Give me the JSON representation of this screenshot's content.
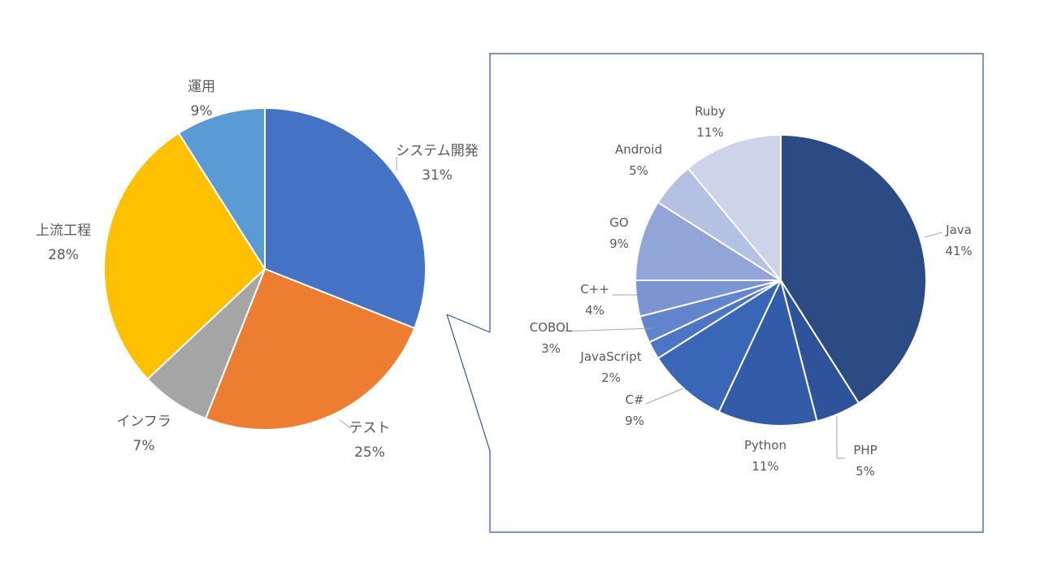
{
  "chart_data": [
    {
      "type": "pie",
      "title": "",
      "slices": [
        {
          "label": "システム開発",
          "value": 31,
          "text": "31%",
          "color": "#4472C4"
        },
        {
          "label": "テスト",
          "value": 25,
          "text": "25%",
          "color": "#ED7D31"
        },
        {
          "label": "インフラ",
          "value": 7,
          "text": "7%",
          "color": "#A5A5A5"
        },
        {
          "label": "上流工程",
          "value": 28,
          "text": "28%",
          "color": "#FFC000"
        },
        {
          "label": "運用",
          "value": 9,
          "text": "9%",
          "color": "#5B9BD5"
        }
      ]
    },
    {
      "type": "pie",
      "title": "",
      "breakdown_of": "システム開発",
      "slices": [
        {
          "label": "Java",
          "value": 41,
          "text": "41%",
          "color": "#2C4A84"
        },
        {
          "label": "PHP",
          "value": 5,
          "text": "5%",
          "color": "#2F539A"
        },
        {
          "label": "Python",
          "value": 11,
          "text": "11%",
          "color": "#335CA8"
        },
        {
          "label": "C#",
          "value": 9,
          "text": "9%",
          "color": "#3A66B8"
        },
        {
          "label": "JavaScript",
          "value": 2,
          "text": "2%",
          "color": "#4C76C4"
        },
        {
          "label": "COBOL",
          "value": 3,
          "text": "3%",
          "color": "#6184CC"
        },
        {
          "label": "C++",
          "value": 4,
          "text": "4%",
          "color": "#7A95D2"
        },
        {
          "label": "GO",
          "value": 9,
          "text": "9%",
          "color": "#91A5D6"
        },
        {
          "label": "Android",
          "value": 5,
          "text": "5%",
          "color": "#B5C1E2"
        },
        {
          "label": "Ruby",
          "value": 11,
          "text": "11%",
          "color": "#CDD3E8"
        }
      ]
    }
  ]
}
